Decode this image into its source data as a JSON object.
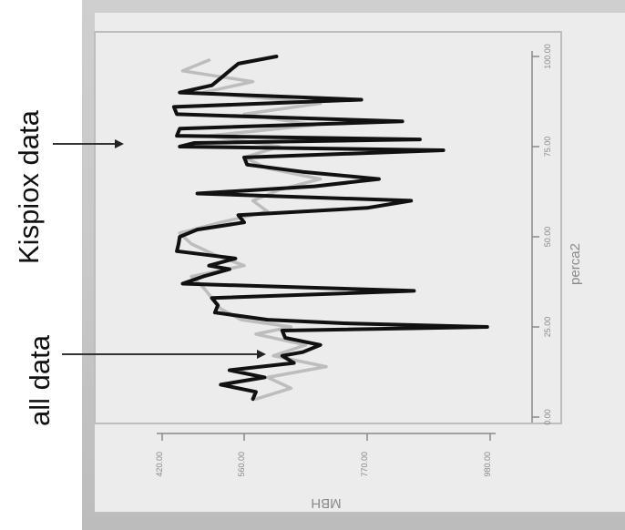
{
  "annotations": {
    "kispiox": "Kispiox data",
    "all": "all data"
  },
  "chart_data": {
    "type": "line",
    "xlabel": "perca2",
    "ylabel": "MBH",
    "x_ticks": [
      "0.00",
      "25.00",
      "50.00",
      "75.00",
      "100.00"
    ],
    "y_ticks": [
      "420.00",
      "560.00",
      "770.00",
      "980.00"
    ],
    "xlim": [
      0,
      100
    ],
    "ylim": [
      420,
      980
    ],
    "series": [
      {
        "name": "Kispiox data",
        "color": "#111111",
        "x": [
          5,
          7,
          9,
          11,
          13,
          15,
          17,
          18,
          20,
          22,
          24,
          25,
          26,
          27,
          29,
          31,
          33,
          35,
          37,
          39,
          41,
          42,
          44,
          46,
          48,
          50,
          52,
          54,
          56,
          58,
          60,
          62,
          64,
          66,
          68,
          70,
          72,
          74,
          75,
          76,
          77,
          78,
          80,
          82,
          84,
          86,
          88,
          90,
          92,
          94,
          96,
          98,
          100
        ],
        "y": [
          575,
          580,
          520,
          595,
          535,
          645,
          625,
          660,
          690,
          630,
          625,
          975,
          730,
          600,
          510,
          515,
          505,
          850,
          455,
          490,
          535,
          500,
          545,
          445,
          448,
          450,
          480,
          560,
          550,
          770,
          845,
          480,
          680,
          790,
          660,
          565,
          560,
          900,
          450,
          475,
          860,
          445,
          450,
          830,
          445,
          440,
          760,
          450,
          505,
          520,
          535,
          550,
          615
        ]
      },
      {
        "name": "all data",
        "color": "#bdbdbd",
        "x": [
          5,
          8,
          11,
          14,
          17,
          20,
          23,
          25,
          27,
          30,
          33,
          36,
          39,
          42,
          45,
          48,
          51,
          54,
          57,
          60,
          63,
          66,
          69,
          72,
          75,
          78,
          81,
          84,
          87,
          90,
          93,
          96,
          99
        ],
        "y": [
          580,
          640,
          600,
          700,
          610,
          665,
          580,
          640,
          555,
          520,
          505,
          490,
          470,
          560,
          510,
          470,
          450,
          520,
          600,
          575,
          620,
          690,
          600,
          560,
          620,
          500,
          680,
          560,
          690,
          490,
          575,
          455,
          500
        ]
      }
    ]
  }
}
